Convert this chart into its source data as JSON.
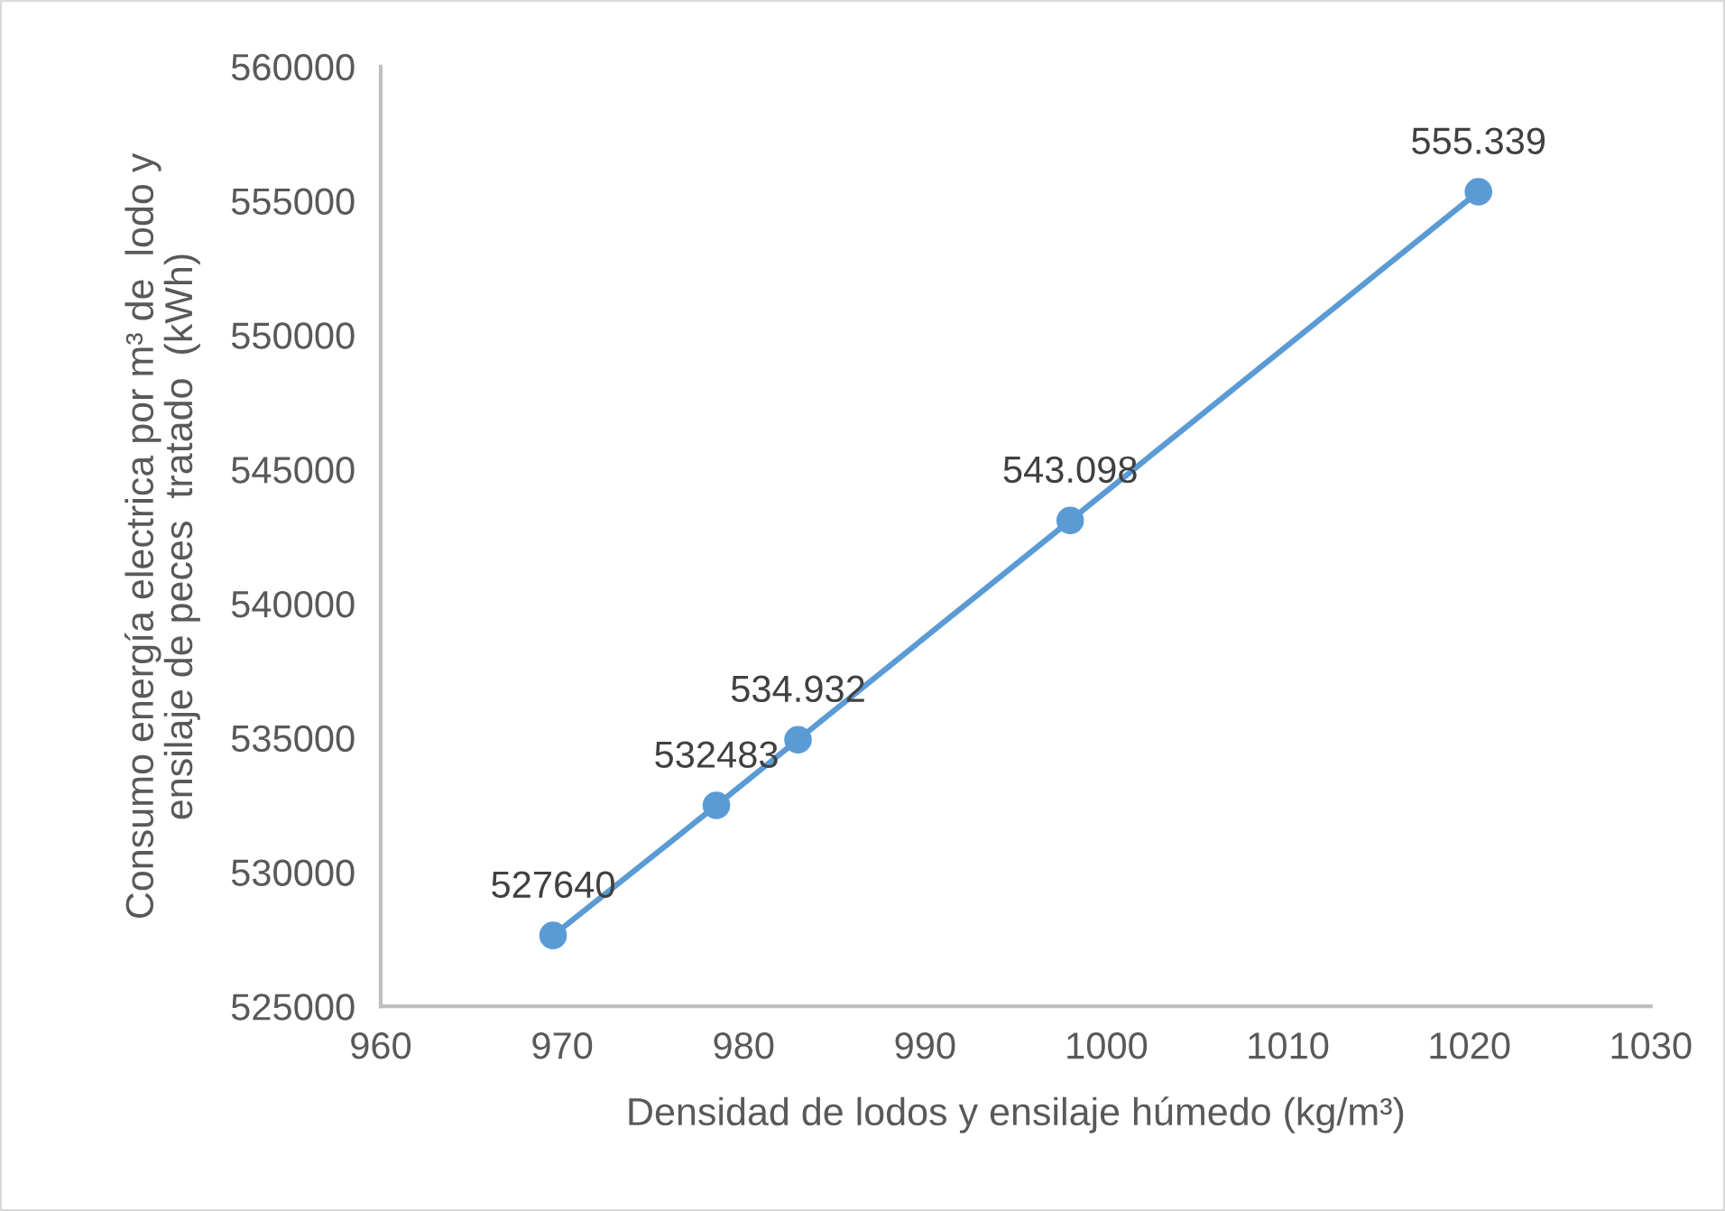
{
  "chart_data": {
    "type": "line",
    "xlabel": "Densidad de lodos y ensilaje húmedo (kg/m³)",
    "ylabel": "Consumo energía electrica por m³ de  lodo y\nensilaje de peces  tratado  (kWh)",
    "x": [
      969.5,
      978.5,
      983,
      998,
      1020.5
    ],
    "series": [
      {
        "color": "#5b9bd5",
        "values": [
          527640,
          532483,
          534932,
          543098,
          555339
        ],
        "value_labels": [
          "527640",
          "532483",
          "534.932",
          "543.098",
          "555.339"
        ]
      }
    ],
    "xlim": [
      960,
      1030
    ],
    "xticks": [
      960,
      970,
      980,
      990,
      1000,
      1010,
      1020,
      1030
    ],
    "ylim": [
      525000,
      560000
    ],
    "yticks": [
      525000,
      530000,
      535000,
      540000,
      545000,
      550000,
      555000,
      560000
    ],
    "grid": false,
    "legend": false,
    "marker": "circle",
    "line_style": "solid"
  }
}
